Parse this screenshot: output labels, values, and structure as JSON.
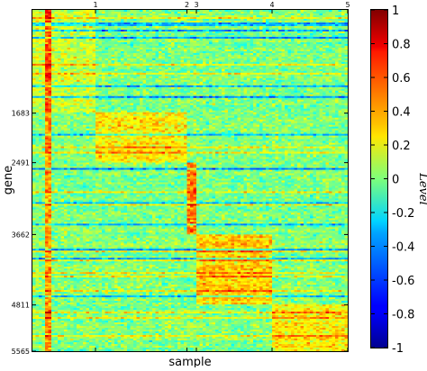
{
  "chart_data": {
    "type": "heatmap",
    "title": "",
    "xlabel": "sample",
    "ylabel": "gene",
    "colorbar_label": "Level",
    "colormap": "jet",
    "clim": [
      -1,
      1
    ],
    "colorbar_ticks": [
      "1",
      "0.8",
      "0.6",
      "0.4",
      "0.2",
      "0",
      "-0.2",
      "-0.4",
      "-0.6",
      "-0.8",
      "-1"
    ],
    "colorbar_tick_values": [
      1,
      0.8,
      0.6,
      0.4,
      0.2,
      0,
      -0.2,
      -0.4,
      -0.6,
      -0.8,
      -1
    ],
    "n_genes": 5565,
    "n_samples": 100,
    "y_tick_labels": [
      "1683",
      "2491",
      "3662",
      "4811",
      "5565"
    ],
    "y_tick_values": [
      1683,
      2491,
      3662,
      4811,
      5565
    ],
    "x_tick_labels": [
      "1",
      "2",
      "3",
      "4",
      "5"
    ],
    "x_tick_values": [
      20,
      49,
      52,
      76,
      100
    ],
    "blocks": [
      {
        "sample_start": 0,
        "sample_end": 20,
        "gene_start": 0,
        "gene_end": 1683,
        "level": 0.25
      },
      {
        "sample_start": 20,
        "sample_end": 49,
        "gene_start": 1683,
        "gene_end": 2491,
        "level": 0.45
      },
      {
        "sample_start": 49,
        "sample_end": 52,
        "gene_start": 2491,
        "gene_end": 3662,
        "level": 0.85
      },
      {
        "sample_start": 52,
        "sample_end": 76,
        "gene_start": 3662,
        "gene_end": 4811,
        "level": 0.55
      },
      {
        "sample_start": 76,
        "sample_end": 100,
        "gene_start": 4811,
        "gene_end": 5565,
        "level": 0.45
      }
    ]
  }
}
